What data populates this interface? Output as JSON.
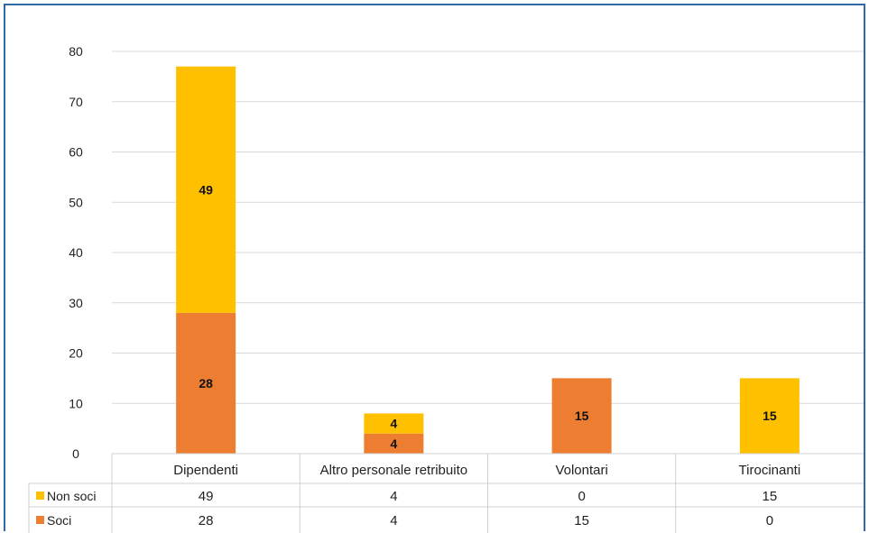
{
  "chart_data": {
    "type": "bar",
    "stacked": true,
    "categories": [
      "Dipendenti",
      "Altro personale retribuito",
      "Volontari",
      "Tirocinanti"
    ],
    "series": [
      {
        "name": "Soci",
        "values": [
          28,
          4,
          15,
          0
        ],
        "color": "#ED7D31"
      },
      {
        "name": "Non soci",
        "values": [
          49,
          4,
          0,
          15
        ],
        "color": "#FFC000"
      }
    ],
    "ylim": [
      0,
      80
    ],
    "yticks": [
      0,
      10,
      20,
      30,
      40,
      50,
      60,
      70,
      80
    ],
    "grid": true,
    "legend": "data-table",
    "data_table": true
  }
}
